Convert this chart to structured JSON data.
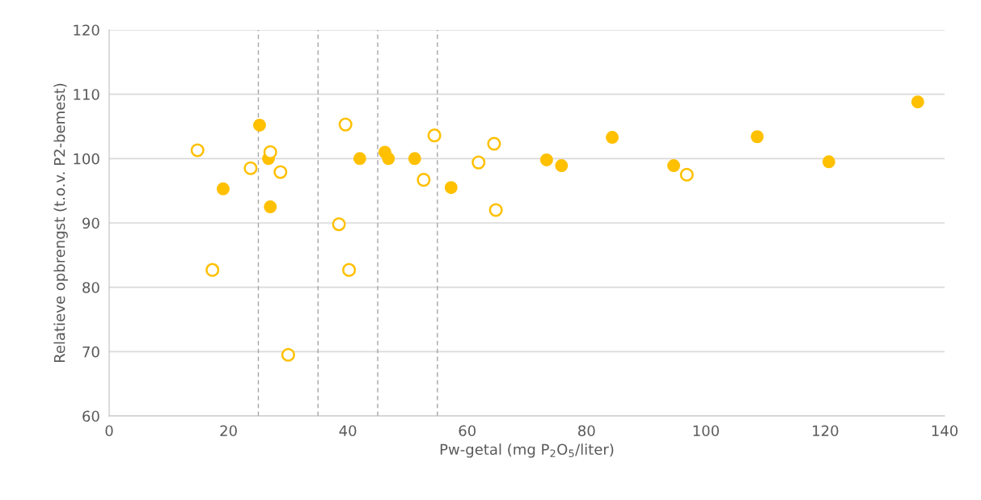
{
  "chart_data": {
    "type": "scatter",
    "xlabel": "Pw-getal (mg P$_{2}$O$_{5}$/liter)",
    "ylabel": "Relatieve opbrengst (t.o.v. P2-bemest)",
    "xlim": [
      0,
      140
    ],
    "xticks": [
      0,
      20,
      40,
      60,
      80,
      100,
      120,
      140
    ],
    "ylim": [
      60,
      120
    ],
    "yticks": [
      60,
      70,
      80,
      90,
      100,
      110,
      120
    ],
    "grid": "y",
    "ref_lines": [
      {
        "axis": "x",
        "value": 25,
        "color": "#a6a6a6",
        "line_style": "dashed"
      },
      {
        "axis": "x",
        "value": 35,
        "color": "#a6a6a6",
        "line_style": "dashed"
      },
      {
        "axis": "x",
        "value": 45,
        "color": "#a6a6a6",
        "line_style": "dashed"
      },
      {
        "axis": "x",
        "value": 55,
        "color": "#a6a6a6",
        "line_style": "dashed"
      }
    ],
    "series": [
      {
        "color": "#ffc000",
        "marker": "circle",
        "x": [
          25.2,
          19.1,
          26.7,
          27.0,
          42.0,
          46.2,
          46.8,
          51.2,
          57.3,
          73.3,
          75.8,
          84.3,
          94.6,
          108.6,
          120.6,
          135.5
        ],
        "values": [
          105.2,
          95.3,
          100.0,
          92.5,
          100.0,
          101.0,
          100.0,
          100.0,
          95.5,
          99.8,
          98.9,
          103.3,
          98.9,
          103.4,
          99.5,
          108.8
        ]
      },
      {
        "color": "#ffc000",
        "marker": "circle",
        "x": [
          14.8,
          17.3,
          23.7,
          27.0,
          28.7,
          30.0,
          38.5,
          39.6,
          40.2,
          52.7,
          54.5,
          61.9,
          64.5,
          64.8,
          96.8
        ],
        "values": [
          101.3,
          82.7,
          98.5,
          101.0,
          97.9,
          69.5,
          89.8,
          105.3,
          82.7,
          96.7,
          103.6,
          99.4,
          102.3,
          92.0,
          97.5
        ]
      }
    ]
  }
}
